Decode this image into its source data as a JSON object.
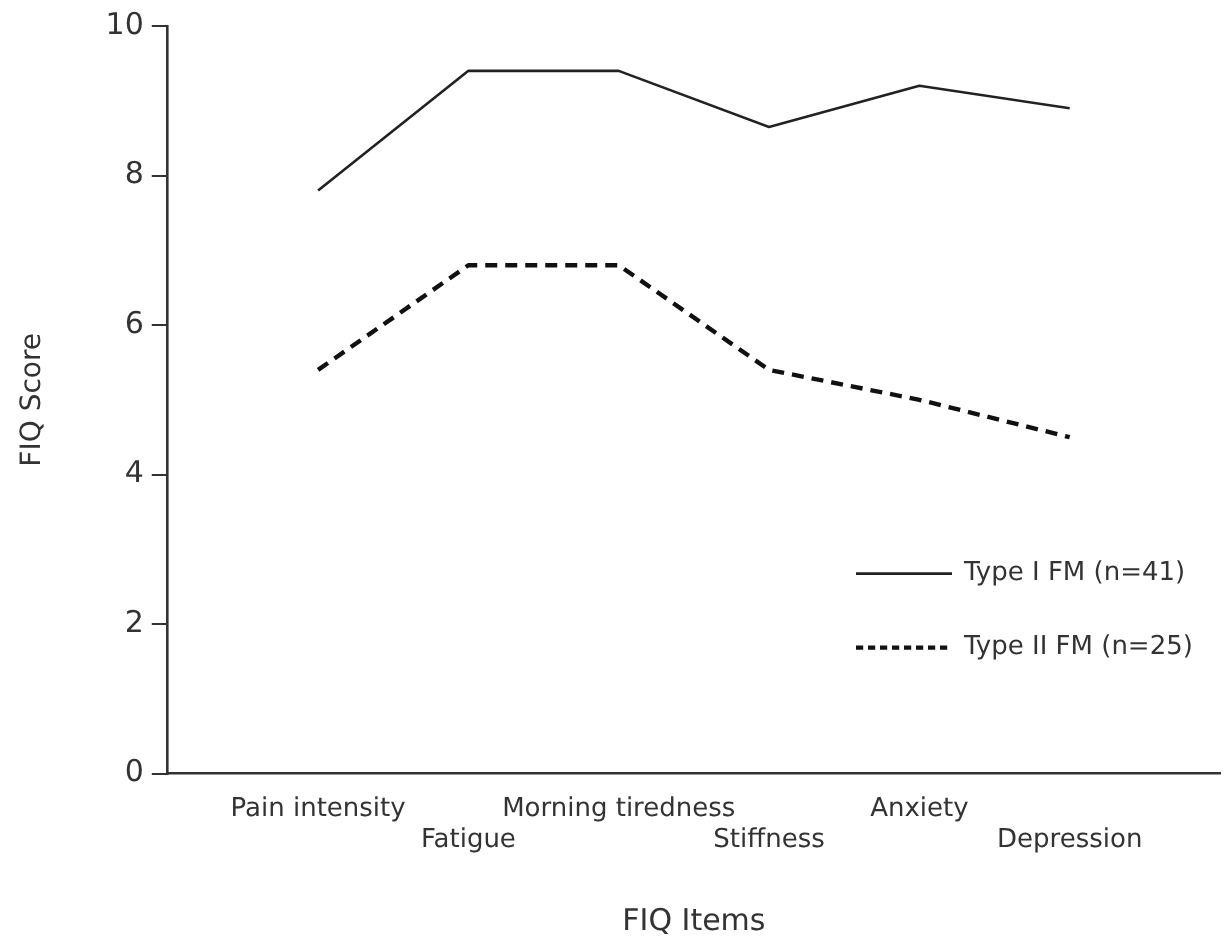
{
  "chart_data": {
    "type": "line",
    "xlabel": "FIQ Items",
    "ylabel": "FIQ Score",
    "categories": [
      "Pain intensity",
      "Fatigue",
      "Morning tiredness",
      "Stiffness",
      "Anxiety",
      "Depression"
    ],
    "series": [
      {
        "name": "Type I FM (n=41)",
        "color": "#222222",
        "line_style": "solid",
        "values": [
          7.8,
          9.4,
          9.4,
          8.65,
          9.2,
          8.9
        ]
      },
      {
        "name": "Type II FM (n=25)",
        "color": "#111111",
        "line_style": "dashed",
        "values": [
          5.4,
          6.8,
          6.8,
          5.4,
          5.0,
          4.5
        ]
      }
    ],
    "ylim": [
      0,
      10
    ],
    "yticks": [
      0,
      2,
      4,
      6,
      8,
      10
    ],
    "grid": false,
    "legend": "bottom right",
    "marker": "none"
  }
}
